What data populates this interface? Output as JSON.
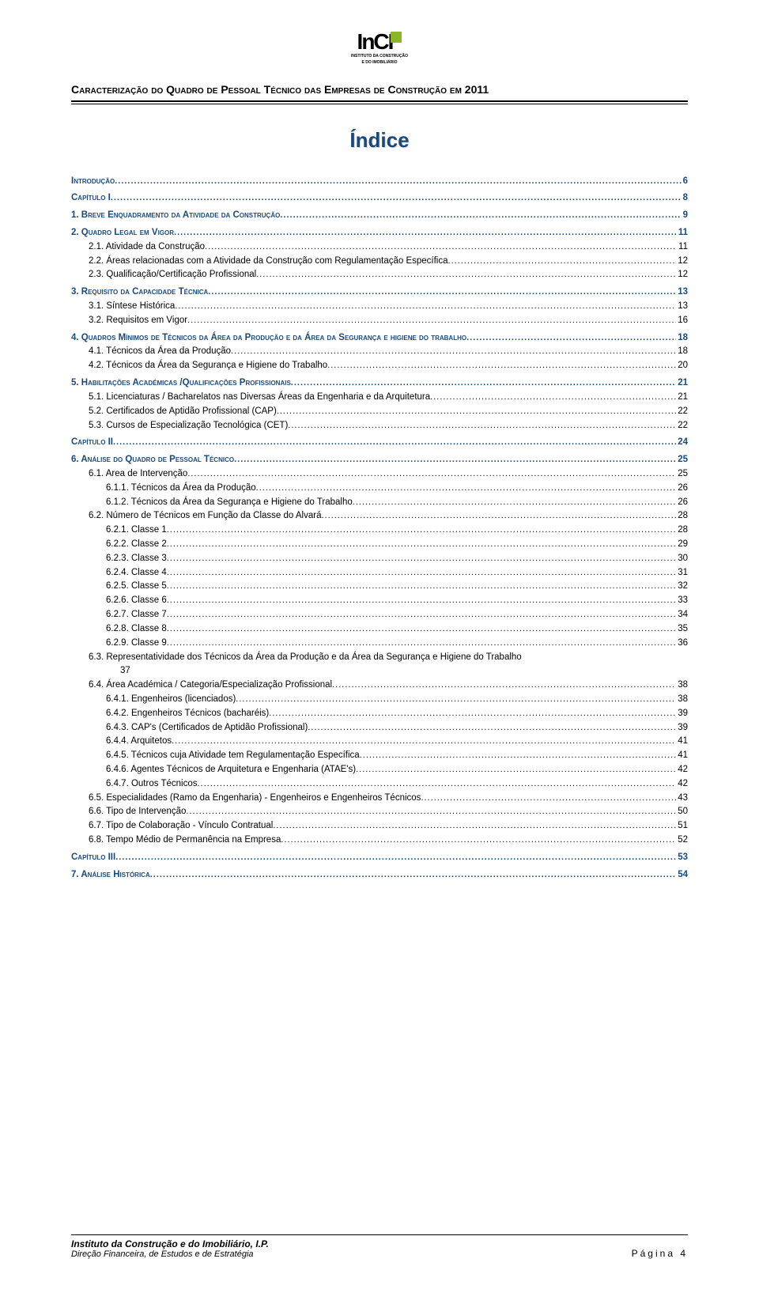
{
  "logo": {
    "text": "InCI",
    "sub1": "INSTITUTO DA CONSTRUÇÃO",
    "sub2": "E DO IMOBILIÁRIO"
  },
  "doc_title": "Caracterização do Quadro de Pessoal Técnico das Empresas de Construção em 2011",
  "main_heading": "Índice",
  "toc": [
    {
      "lvl": "head",
      "label": "Introdução",
      "page": "6"
    },
    {
      "lvl": "head",
      "label": "Capítulo I",
      "page": "8"
    },
    {
      "lvl": "head",
      "label": "1. Breve Enquadramento da Atividade da Construção",
      "page": "9"
    },
    {
      "lvl": "head",
      "label": "2. Quadro Legal em Vigor",
      "page": "11"
    },
    {
      "lvl": "2",
      "label": "2.1. Atividade da Construção",
      "page": "11"
    },
    {
      "lvl": "2",
      "label": "2.2. Áreas relacionadas com a Atividade da Construção com Regulamentação Específica",
      "page": "12"
    },
    {
      "lvl": "2",
      "label": "2.3. Qualificação/Certificação Profissional",
      "page": "12"
    },
    {
      "lvl": "head",
      "label": "3. Requisito da Capacidade Técnica",
      "page": "13"
    },
    {
      "lvl": "2",
      "label": "3.1. Síntese Histórica",
      "page": "13"
    },
    {
      "lvl": "2",
      "label": "3.2. Requisitos em Vigor",
      "page": "16"
    },
    {
      "lvl": "head",
      "label": "4. Quadros Mínimos de Técnicos da Área da Produção e da Área da Segurança e higiene do trabalho",
      "page": "18"
    },
    {
      "lvl": "2",
      "label": "4.1. Técnicos da Área da Produção",
      "page": "18"
    },
    {
      "lvl": "2",
      "label": "4.2. Técnicos da Área da Segurança e Higiene do Trabalho",
      "page": "20"
    },
    {
      "lvl": "head",
      "label": "5. Habilitações Académicas /Qualificações Profissionais",
      "page": "21"
    },
    {
      "lvl": "2",
      "label": "5.1. Licenciaturas / Bacharelatos nas Diversas Áreas da Engenharia e da Arquitetura",
      "page": "21"
    },
    {
      "lvl": "2",
      "label": "5.2. Certificados de Aptidão Profissional (CAP)",
      "page": "22"
    },
    {
      "lvl": "2",
      "label": "5.3. Cursos de Especialização Tecnológica (CET)",
      "page": "22"
    },
    {
      "lvl": "head",
      "label": "Capítulo II",
      "page": "24"
    },
    {
      "lvl": "head",
      "label": "6. Análise do Quadro de Pessoal Técnico",
      "page": "25"
    },
    {
      "lvl": "2",
      "label": "6.1. Area de Intervenção",
      "page": "25"
    },
    {
      "lvl": "3",
      "label": "6.1.1.  Técnicos da Área da Produção",
      "page": "26"
    },
    {
      "lvl": "3",
      "label": "6.1.2.  Técnicos da Área da Segurança e Higiene do Trabalho",
      "page": "26"
    },
    {
      "lvl": "2",
      "label": "6.2. Número de Técnicos em Função da Classe do Alvará",
      "page": "28"
    },
    {
      "lvl": "3",
      "label": "6.2.1.  Classe 1",
      "page": "28"
    },
    {
      "lvl": "3",
      "label": "6.2.2.  Classe 2",
      "page": "29"
    },
    {
      "lvl": "3",
      "label": "6.2.3.  Classe 3",
      "page": "30"
    },
    {
      "lvl": "3",
      "label": "6.2.4.  Classe 4",
      "page": "31"
    },
    {
      "lvl": "3",
      "label": "6.2.5.  Classe 5",
      "page": "32"
    },
    {
      "lvl": "3",
      "label": "6.2.6.  Classe 6",
      "page": "33"
    },
    {
      "lvl": "3",
      "label": "6.2.7.  Classe 7",
      "page": "34"
    },
    {
      "lvl": "3",
      "label": "6.2.8.  Classe 8",
      "page": "35"
    },
    {
      "lvl": "3",
      "label": "6.2.9.  Classe 9",
      "page": "36"
    },
    {
      "lvl": "2-wrap",
      "label": "6.3. Representatividade dos Técnicos da Área da Produção e da Área da Segurança e Higiene do Trabalho",
      "page": "37"
    },
    {
      "lvl": "2",
      "label": "6.4. Área Académica / Categoria/Especialização Profissional",
      "page": "38"
    },
    {
      "lvl": "3",
      "label": "6.4.1.  Engenheiros (licenciados)",
      "page": "38"
    },
    {
      "lvl": "3",
      "label": "6.4.2.  Engenheiros Técnicos (bacharéis)",
      "page": "39"
    },
    {
      "lvl": "3",
      "label": "6.4.3.  CAP's (Certificados de Aptidão Profissional)",
      "page": "39"
    },
    {
      "lvl": "3",
      "label": "6.4.4.  Arquitetos",
      "page": "41"
    },
    {
      "lvl": "3",
      "label": "6.4.5.  Técnicos cuja Atividade tem Regulamentação Específica",
      "page": "41"
    },
    {
      "lvl": "3",
      "label": "6.4.6.  Agentes Técnicos de Arquitetura e Engenharia (ATAE's)",
      "page": "42"
    },
    {
      "lvl": "3",
      "label": "6.4.7.  Outros Técnicos",
      "page": "42"
    },
    {
      "lvl": "2",
      "label": "6.5. Especialidades (Ramo da Engenharia) - Engenheiros e Engenheiros Técnicos",
      "page": "43"
    },
    {
      "lvl": "2",
      "label": "6.6. Tipo de Intervenção",
      "page": "50"
    },
    {
      "lvl": "2",
      "label": "6.7. Tipo de Colaboração - Vínculo Contratual",
      "page": "51"
    },
    {
      "lvl": "2",
      "label": "6.8. Tempo Médio de Permanência na Empresa",
      "page": "52"
    },
    {
      "lvl": "head",
      "label": "Capítulo III",
      "page": "53"
    },
    {
      "lvl": "head",
      "label": "7. Análise Histórica",
      "page": "54"
    }
  ],
  "footer": {
    "line1": "Instituto da Construção e do Imobiliário, I.P.",
    "line2": "Direção Financeira, de Estudos e de Estratégia",
    "page_label": "Página 4"
  },
  "colors": {
    "heading": "#1a4a7a",
    "accent_green": "#8bb627",
    "text": "#000000",
    "bg": "#ffffff"
  }
}
